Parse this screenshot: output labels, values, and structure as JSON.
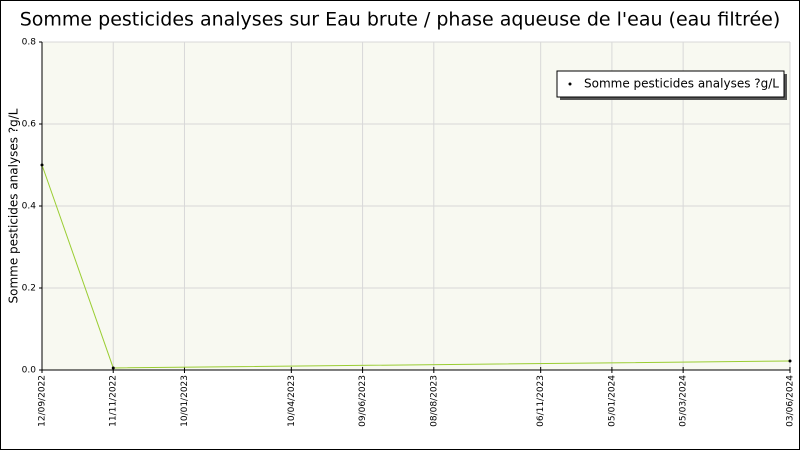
{
  "chart_data": {
    "type": "line",
    "title": "Somme pesticides analyses sur Eau brute / phase aqueuse de l'eau (eau filtrée)",
    "ylabel": "Somme pesticides analyses ?g/L",
    "x": [
      "12/09/2022",
      "11/11/2022",
      "03/06/2024"
    ],
    "series": [
      {
        "name": "Somme pesticides analyses ?g/L",
        "color": "#9acd32",
        "values": [
          0.5,
          0.005,
          0.022
        ]
      }
    ],
    "xlim": [
      "12/09/2022",
      "03/06/2024"
    ],
    "xticks": [
      "12/09/2022",
      "11/11/2022",
      "10/01/2023",
      "10/04/2023",
      "09/06/2023",
      "08/08/2023",
      "06/11/2023",
      "05/01/2024",
      "05/03/2024",
      "03/06/2024"
    ],
    "ylim": [
      0,
      0.8
    ],
    "yticks": [
      {
        "value": 0,
        "label": "0.0"
      },
      0.2,
      0.4,
      0.6,
      0.8
    ],
    "grid": true,
    "legend": "upper right"
  }
}
